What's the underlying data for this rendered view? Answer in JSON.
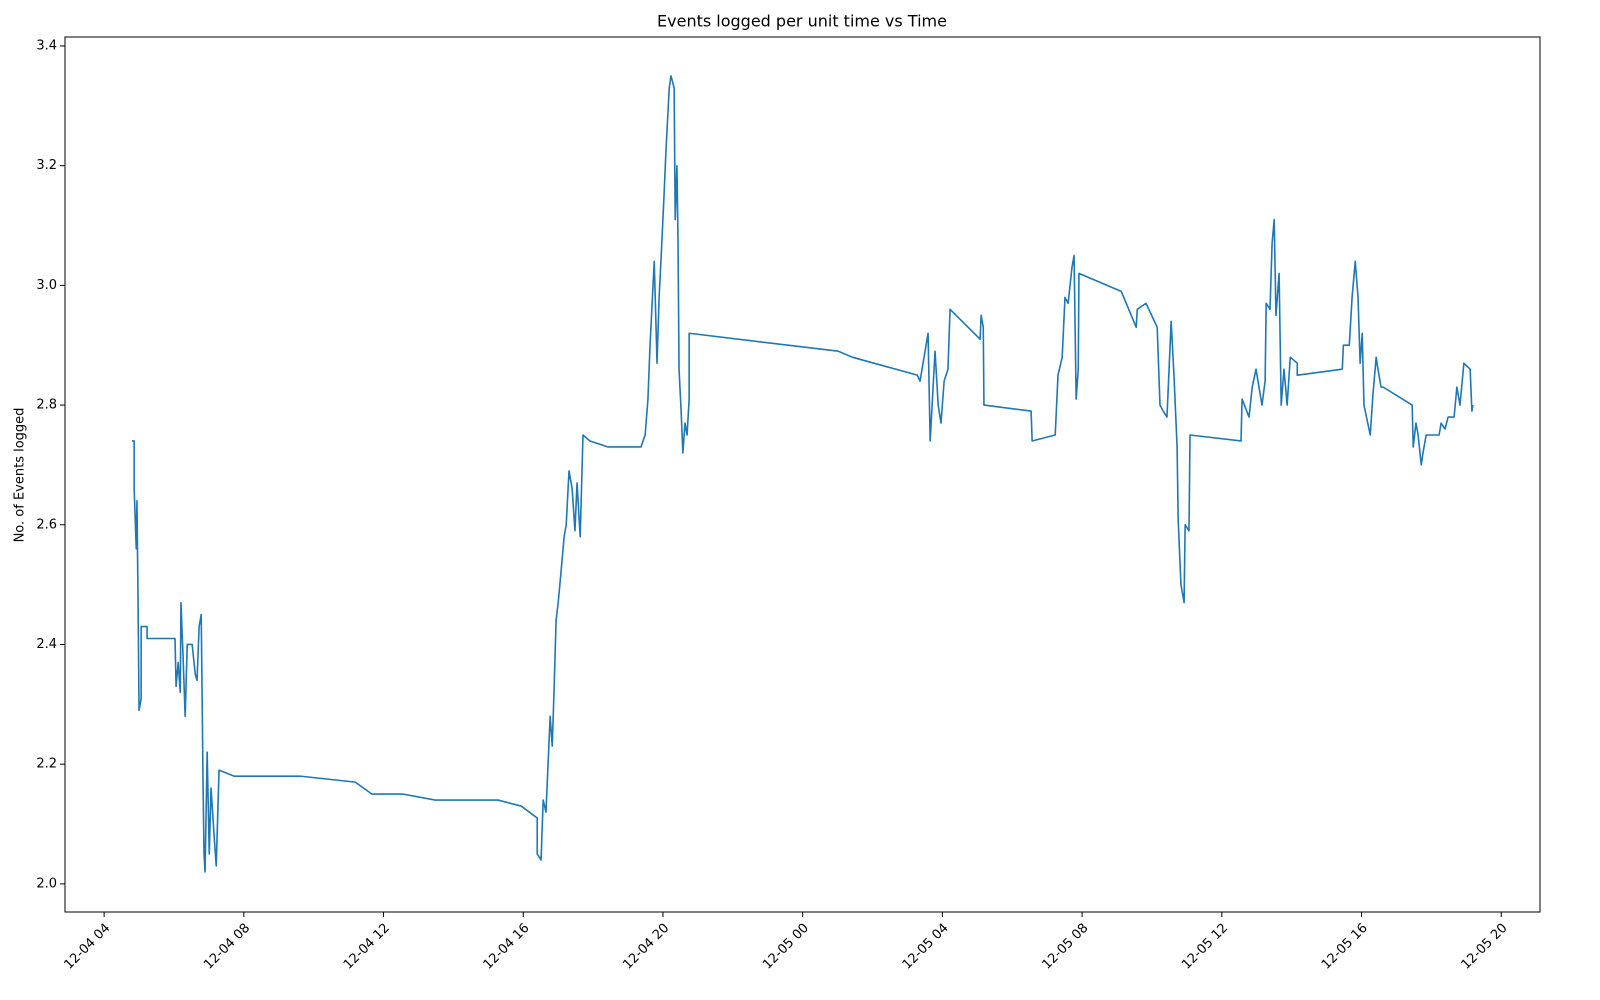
{
  "chart_data": {
    "type": "line",
    "title": "Events logged per unit time vs Time",
    "ylabel": "No. of Events logged",
    "x": [
      4.8,
      4.86,
      4.86,
      4.92,
      4.94,
      4.97,
      5.0,
      5.06,
      5.06,
      5.23,
      5.23,
      6.03,
      6.06,
      6.12,
      6.18,
      6.2,
      6.26,
      6.32,
      6.38,
      6.52,
      6.61,
      6.66,
      6.72,
      6.78,
      6.81,
      6.83,
      6.86,
      6.89,
      6.95,
      7.01,
      7.06,
      7.15,
      7.21,
      7.29,
      7.72,
      9.61,
      11.19,
      11.67,
      12.56,
      13.48,
      15.28,
      15.94,
      16.4,
      16.4,
      16.51,
      16.57,
      16.65,
      16.71,
      16.77,
      16.83,
      16.88,
      16.94,
      17.0,
      17.08,
      17.17,
      17.23,
      17.31,
      17.4,
      17.48,
      17.54,
      17.63,
      17.71,
      17.91,
      18.43,
      19.37,
      19.49,
      19.57,
      19.63,
      19.75,
      19.83,
      19.89,
      19.95,
      20.03,
      20.09,
      20.18,
      20.23,
      20.32,
      20.35,
      20.4,
      20.43,
      20.46,
      20.52,
      20.57,
      20.63,
      20.69,
      20.75,
      20.75,
      25.02,
      25.42,
      27.28,
      27.36,
      27.59,
      27.65,
      27.79,
      27.88,
      27.96,
      28.05,
      28.16,
      28.22,
      29.08,
      29.11,
      29.17,
      29.19,
      30.54,
      30.57,
      31.23,
      31.31,
      31.43,
      31.51,
      31.6,
      31.71,
      31.77,
      31.83,
      31.89,
      31.91,
      33.12,
      33.55,
      33.58,
      33.83,
      34.15,
      34.23,
      34.32,
      34.43,
      34.55,
      34.63,
      34.72,
      34.75,
      34.83,
      34.92,
      34.95,
      35.06,
      35.09,
      36.55,
      36.58,
      36.78,
      36.87,
      36.98,
      37.15,
      37.24,
      37.27,
      37.38,
      37.44,
      37.5,
      37.55,
      37.64,
      37.7,
      37.78,
      37.87,
      37.96,
      38.16,
      38.16,
      39.45,
      39.48,
      39.65,
      39.73,
      39.82,
      39.9,
      39.96,
      40.02,
      40.07,
      40.25,
      40.33,
      40.42,
      40.47,
      40.56,
      40.62,
      41.45,
      41.48,
      41.56,
      41.62,
      41.71,
      41.76,
      41.85,
      42.22,
      42.28,
      42.39,
      42.48,
      42.65,
      42.73,
      42.82,
      42.93,
      43.11,
      43.16,
      43.19
    ],
    "series": [
      {
        "color": "#1f77b4",
        "values": [
          2.74,
          2.74,
          2.66,
          2.56,
          2.64,
          2.48,
          2.29,
          2.31,
          2.43,
          2.43,
          2.41,
          2.41,
          2.33,
          2.37,
          2.32,
          2.47,
          2.38,
          2.28,
          2.4,
          2.4,
          2.35,
          2.34,
          2.43,
          2.45,
          2.29,
          2.18,
          2.05,
          2.02,
          2.22,
          2.05,
          2.16,
          2.08,
          2.03,
          2.19,
          2.18,
          2.18,
          2.17,
          2.15,
          2.15,
          2.14,
          2.14,
          2.13,
          2.11,
          2.05,
          2.04,
          2.14,
          2.12,
          2.2,
          2.28,
          2.23,
          2.32,
          2.44,
          2.47,
          2.52,
          2.58,
          2.6,
          2.69,
          2.66,
          2.59,
          2.67,
          2.58,
          2.75,
          2.74,
          2.73,
          2.73,
          2.75,
          2.81,
          2.9,
          3.04,
          2.87,
          2.98,
          3.05,
          3.15,
          3.23,
          3.33,
          3.35,
          3.33,
          3.11,
          3.2,
          3.08,
          2.86,
          2.79,
          2.72,
          2.77,
          2.75,
          2.81,
          2.92,
          2.89,
          2.88,
          2.85,
          2.84,
          2.92,
          2.74,
          2.89,
          2.8,
          2.77,
          2.84,
          2.86,
          2.96,
          2.91,
          2.95,
          2.93,
          2.8,
          2.79,
          2.74,
          2.75,
          2.85,
          2.88,
          2.98,
          2.97,
          3.03,
          3.05,
          2.81,
          2.86,
          3.02,
          2.99,
          2.93,
          2.96,
          2.97,
          2.93,
          2.8,
          2.79,
          2.78,
          2.94,
          2.85,
          2.73,
          2.61,
          2.5,
          2.47,
          2.6,
          2.59,
          2.75,
          2.74,
          2.81,
          2.78,
          2.83,
          2.86,
          2.8,
          2.84,
          2.97,
          2.96,
          3.07,
          3.11,
          2.95,
          3.02,
          2.8,
          2.86,
          2.8,
          2.88,
          2.87,
          2.85,
          2.86,
          2.9,
          2.9,
          2.98,
          3.04,
          2.98,
          2.87,
          2.92,
          2.8,
          2.75,
          2.82,
          2.88,
          2.86,
          2.83,
          2.83,
          2.8,
          2.73,
          2.77,
          2.75,
          2.7,
          2.72,
          2.75,
          2.75,
          2.77,
          2.76,
          2.78,
          2.78,
          2.83,
          2.8,
          2.87,
          2.86,
          2.79,
          2.8
        ]
      }
    ],
    "xlim": [
      2.88,
      45.11
    ],
    "xticks": [
      {
        "value": 4,
        "label": "12-04 04"
      },
      {
        "value": 8,
        "label": "12-04 08"
      },
      {
        "value": 12,
        "label": "12-04 12"
      },
      {
        "value": 16,
        "label": "12-04 16"
      },
      {
        "value": 20,
        "label": "12-04 20"
      },
      {
        "value": 24,
        "label": "12-05 00"
      },
      {
        "value": 28,
        "label": "12-05 04"
      },
      {
        "value": 32,
        "label": "12-05 08"
      },
      {
        "value": 36,
        "label": "12-05 12"
      },
      {
        "value": 40,
        "label": "12-05 16"
      },
      {
        "value": 44,
        "label": "12-05 20"
      }
    ],
    "ylim": [
      1.953,
      3.415
    ],
    "yticks": [
      {
        "value": 2,
        "label": "2.0"
      },
      2.2,
      2.4,
      2.6,
      2.8,
      {
        "value": 3,
        "label": "3.0"
      },
      3.2,
      3.4
    ],
    "grid": false
  }
}
